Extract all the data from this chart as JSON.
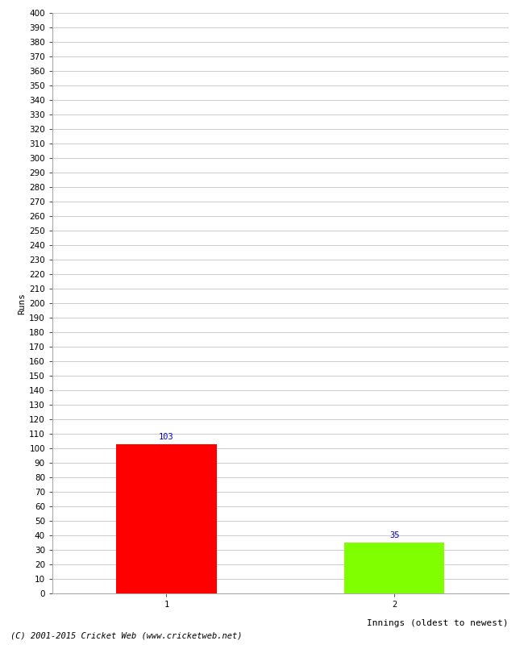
{
  "categories": [
    "1",
    "2"
  ],
  "values": [
    103,
    35
  ],
  "bar_colors": [
    "#ff0000",
    "#80ff00"
  ],
  "ylabel": "Runs",
  "xlabel": "Innings (oldest to newest)",
  "ylim": [
    0,
    400
  ],
  "ytick_step": 10,
  "annotation_color": "#0000cc",
  "annotation_fontsize": 7.5,
  "tick_fontsize": 7.5,
  "label_fontsize": 8,
  "footer_text": "(C) 2001-2015 Cricket Web (www.cricketweb.net)",
  "footer_fontsize": 7.5,
  "background_color": "#ffffff",
  "grid_color": "#cccccc",
  "figsize": [
    6.5,
    8.0
  ],
  "dpi": 100
}
